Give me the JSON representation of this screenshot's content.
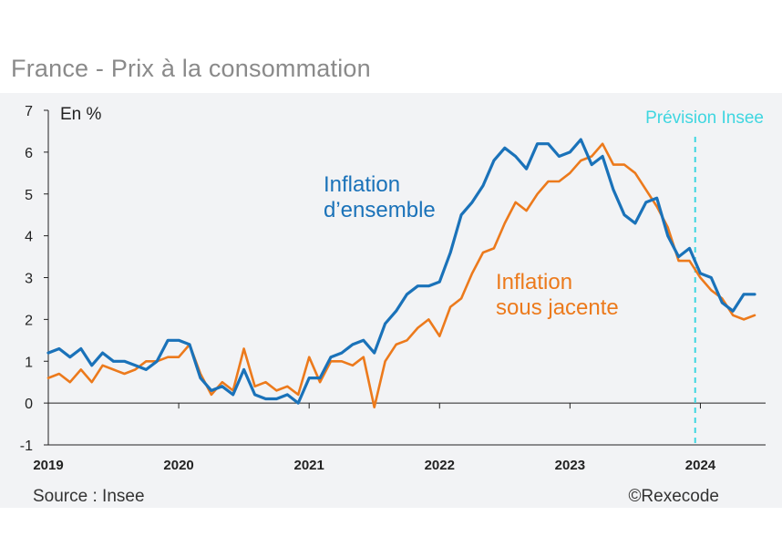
{
  "page": {
    "title": "France - Prix à la consommation",
    "source": "Source : Insee",
    "credit": "©Rexecode"
  },
  "colors": {
    "ensemble": "#1a72b9",
    "sous_jacente": "#ec7a1c",
    "forecast": "#3fd6e0",
    "axis": "#222222",
    "panel": "#f2f3f5"
  },
  "chart_data": {
    "type": "line",
    "unit_label": "En %",
    "xlim": [
      2019.0,
      2024.5
    ],
    "ylim": [
      -1,
      7
    ],
    "yticks": [
      "-1",
      "0",
      "1",
      "2",
      "3",
      "4",
      "5",
      "6",
      "7"
    ],
    "xticks": [
      "2019",
      "2020",
      "2021",
      "2022",
      "2023",
      "2024"
    ],
    "forecast": {
      "label": "Prévision Insee",
      "x": 2023.96
    },
    "series": [
      {
        "key": "ensemble",
        "name": "Inflation d'ensemble",
        "label_lines": [
          "Inflation",
          "d’ensemble"
        ],
        "start": 2019.0,
        "step": 0.08333,
        "values": [
          1.2,
          1.3,
          1.1,
          1.3,
          0.9,
          1.2,
          1.0,
          1.0,
          0.9,
          0.8,
          1.0,
          1.5,
          1.5,
          1.4,
          0.6,
          0.3,
          0.4,
          0.2,
          0.8,
          0.2,
          0.1,
          0.1,
          0.2,
          0.0,
          0.6,
          0.6,
          1.1,
          1.2,
          1.4,
          1.5,
          1.2,
          1.9,
          2.2,
          2.6,
          2.8,
          2.8,
          2.9,
          3.6,
          4.5,
          4.8,
          5.2,
          5.8,
          6.1,
          5.9,
          5.6,
          6.2,
          6.2,
          5.9,
          6.0,
          6.3,
          5.7,
          5.9,
          5.1,
          4.5,
          4.3,
          4.8,
          4.9,
          4.0,
          3.5,
          3.7,
          3.1,
          3.0,
          2.4,
          2.2,
          2.6,
          2.6
        ]
      },
      {
        "key": "sous_jacente",
        "name": "Inflation sous jacente",
        "label_lines": [
          "Inflation",
          "sous jacente"
        ],
        "start": 2019.0,
        "step": 0.08333,
        "values": [
          0.6,
          0.7,
          0.5,
          0.8,
          0.5,
          0.9,
          0.8,
          0.7,
          0.8,
          1.0,
          1.0,
          1.1,
          1.1,
          1.4,
          0.7,
          0.2,
          0.5,
          0.3,
          1.3,
          0.4,
          0.5,
          0.3,
          0.4,
          0.2,
          1.1,
          0.5,
          1.0,
          1.0,
          0.9,
          1.1,
          -0.1,
          1.0,
          1.4,
          1.5,
          1.8,
          2.0,
          1.6,
          2.3,
          2.5,
          3.1,
          3.6,
          3.7,
          4.3,
          4.8,
          4.6,
          5.0,
          5.3,
          5.3,
          5.5,
          5.8,
          5.9,
          6.2,
          5.7,
          5.7,
          5.5,
          5.1,
          4.7,
          4.2,
          3.4,
          3.4,
          3.0,
          2.7,
          2.5,
          2.1,
          2.0,
          2.1
        ]
      }
    ]
  }
}
